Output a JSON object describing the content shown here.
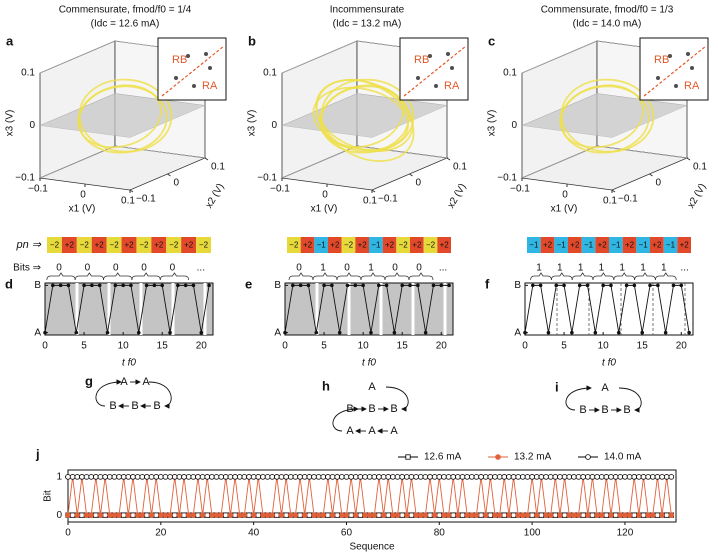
{
  "chart_data": [
    {
      "type": "trajectory3d",
      "panel_label": "a",
      "title": "Commensurate, fmod/f0 = 1/4",
      "subtitle": "(Idc = 12.6 mA)",
      "xlabel": "x1 (V)",
      "ylabel": "x2 (V)",
      "zlabel": "x3 (V)",
      "xlim": [
        -0.1,
        0.1
      ],
      "ylim": [
        -0.1,
        0.1
      ],
      "zlim": [
        -0.1,
        0.1
      ],
      "xticks": [
        {
          "value": -0.1,
          "label": "−0.1"
        },
        0,
        0.1
      ],
      "yticks": [
        {
          "value": -0.1,
          "label": "−0.1"
        },
        0,
        0.1
      ],
      "zticks": [
        {
          "value": -0.1,
          "label": "−0.1"
        },
        0,
        0.1
      ],
      "inset_labels": [
        "RB",
        "RA"
      ]
    },
    {
      "type": "trajectory3d",
      "panel_label": "b",
      "title": "Incommensurate",
      "subtitle": "(Idc = 13.2 mA)",
      "xlabel": "x1 (V)",
      "ylabel": "x2 (V)",
      "zlabel": "x3 (V)",
      "xlim": [
        -0.1,
        0.1
      ],
      "ylim": [
        -0.1,
        0.1
      ],
      "zlim": [
        -0.1,
        0.1
      ],
      "xticks": [
        {
          "value": -0.1,
          "label": "−0.1"
        },
        0,
        0.1
      ],
      "yticks": [
        {
          "value": -0.1,
          "label": "−0.1"
        },
        0,
        0.1
      ],
      "zticks": [
        {
          "value": -0.1,
          "label": "−0.1"
        },
        0,
        0.1
      ],
      "inset_labels": [
        "RB",
        "RA"
      ]
    },
    {
      "type": "trajectory3d",
      "panel_label": "c",
      "title": "Commensurate, fmod/f0 = 1/3",
      "subtitle": "(Idc = 14.0 mA)",
      "xlabel": "x1 (V)",
      "ylabel": "x2 (V)",
      "zlabel": "x3 (V)",
      "xlim": [
        -0.1,
        0.1
      ],
      "ylim": [
        -0.1,
        0.1
      ],
      "zlim": [
        -0.1,
        0.1
      ],
      "xticks": [
        {
          "value": -0.1,
          "label": "−0.1"
        },
        0,
        0.1
      ],
      "yticks": [
        {
          "value": -0.1,
          "label": "−0.1"
        },
        0,
        0.1
      ],
      "zticks": [
        {
          "value": -0.1,
          "label": "−0.1"
        },
        0,
        0.1
      ],
      "inset_labels": [
        "RB",
        "RA"
      ]
    },
    {
      "type": "line",
      "panel_label": "d",
      "pn_label": "pn ⇒",
      "bits_label": "Bits ⇒",
      "pn": [
        "−2",
        "+2",
        "−2",
        "+2",
        "−2",
        "+2",
        "−2",
        "+2",
        "−2",
        "+2",
        "−2"
      ],
      "pn_colors": [
        "#e6da3a",
        "#e2492b",
        "#e6da3a",
        "#e2492b",
        "#e6da3a",
        "#e2492b",
        "#e6da3a",
        "#e2492b",
        "#e6da3a",
        "#e2492b",
        "#e6da3a"
      ],
      "bits": [
        "0",
        "0",
        "0",
        "0",
        "0",
        "..."
      ],
      "x": [
        0,
        1,
        2,
        3,
        4,
        5,
        6,
        7,
        8,
        9,
        10,
        11,
        12,
        13,
        14,
        15,
        16,
        17,
        18,
        19,
        20,
        21
      ],
      "values": [
        0,
        1,
        1,
        1,
        0,
        1,
        1,
        1,
        0,
        1,
        1,
        1,
        0,
        1,
        1,
        1,
        0,
        1,
        1,
        1,
        0,
        1
      ],
      "xlim": [
        0,
        21.5
      ],
      "ylim": [
        -0.05,
        1.05
      ],
      "xticks": [
        0,
        5,
        10,
        15,
        20
      ],
      "yticks": [
        {
          "value": 0,
          "label": "A"
        },
        {
          "value": 1,
          "label": "B"
        }
      ],
      "xlabel": "t f0"
    },
    {
      "type": "line",
      "panel_label": "e",
      "pn": [
        "−2",
        "+2",
        "−1",
        "+2",
        "−2",
        "+2",
        "−1",
        "+2",
        "−2",
        "+2",
        "−2",
        "+2"
      ],
      "pn_colors": [
        "#e6da3a",
        "#e2492b",
        "#2fb6e3",
        "#e2492b",
        "#e6da3a",
        "#e2492b",
        "#2fb6e3",
        "#e2492b",
        "#e6da3a",
        "#e2492b",
        "#e6da3a",
        "#e2492b"
      ],
      "bits": [
        "0",
        "1",
        "0",
        "1",
        "0",
        "0",
        "..."
      ],
      "x": [
        0,
        1,
        2,
        3,
        4,
        5,
        6,
        7,
        8,
        9,
        10,
        11,
        12,
        13,
        14,
        15,
        16,
        17,
        18,
        19,
        20,
        21
      ],
      "values": [
        0,
        1,
        1,
        1,
        0,
        1,
        1,
        0,
        1,
        1,
        1,
        0,
        1,
        1,
        0,
        1,
        1,
        1,
        0,
        1,
        1,
        1
      ],
      "xlim": [
        0,
        21.5
      ],
      "ylim": [
        -0.05,
        1.05
      ],
      "xticks": [
        0,
        5,
        10,
        15,
        20
      ],
      "yticks": [
        {
          "value": 0,
          "label": "A"
        },
        {
          "value": 1,
          "label": "B"
        }
      ],
      "xlabel": "t f0"
    },
    {
      "type": "line",
      "panel_label": "f",
      "pn": [
        "−1",
        "+2",
        "−1",
        "+2",
        "−1",
        "+2",
        "−1",
        "+2",
        "−1",
        "+2",
        "−1",
        "+2"
      ],
      "pn_colors": [
        "#2fb6e3",
        "#e2492b",
        "#2fb6e3",
        "#e2492b",
        "#2fb6e3",
        "#e2492b",
        "#2fb6e3",
        "#e2492b",
        "#2fb6e3",
        "#e2492b",
        "#2fb6e3",
        "#e2492b"
      ],
      "bits": [
        "1",
        "1",
        "1",
        "1",
        "1",
        "1",
        "1",
        "..."
      ],
      "x": [
        0,
        1,
        2,
        3,
        4,
        5,
        6,
        7,
        8,
        9,
        10,
        11,
        12,
        13,
        14,
        15,
        16,
        17,
        18,
        19,
        20,
        21
      ],
      "values": [
        0,
        1,
        1,
        0,
        1,
        1,
        0,
        1,
        1,
        0,
        1,
        1,
        0,
        1,
        1,
        0,
        1,
        1,
        0,
        1,
        1,
        0
      ],
      "xlim": [
        0,
        21.5
      ],
      "ylim": [
        -0.05,
        1.05
      ],
      "xticks": [
        0,
        5,
        10,
        15,
        20
      ],
      "yticks": [
        {
          "value": 0,
          "label": "A"
        },
        {
          "value": 1,
          "label": "B"
        }
      ],
      "xlabel": "t f0"
    },
    {
      "type": "line",
      "panel_label": "j",
      "xlabel": "Sequence",
      "ylabel": "Bit",
      "legend": "top-right",
      "xlim": [
        0,
        131
      ],
      "ylim": [
        -0.18,
        1.18
      ],
      "xticks": [
        0,
        20,
        40,
        60,
        80,
        100,
        120
      ],
      "yticks": [
        0,
        1
      ],
      "x": [
        0,
        1,
        2,
        3,
        4,
        5,
        6,
        7,
        8,
        9,
        10,
        11,
        12,
        13,
        14,
        15,
        16,
        17,
        18,
        19,
        20,
        21,
        22,
        23,
        24,
        25,
        26,
        27,
        28,
        29,
        30,
        31,
        32,
        33,
        34,
        35,
        36,
        37,
        38,
        39,
        40,
        41,
        42,
        43,
        44,
        45,
        46,
        47,
        48,
        49,
        50,
        51,
        52,
        53,
        54,
        55,
        56,
        57,
        58,
        59,
        60,
        61,
        62,
        63,
        64,
        65,
        66,
        67,
        68,
        69,
        70,
        71,
        72,
        73,
        74,
        75,
        76,
        77,
        78,
        79,
        80,
        81,
        82,
        83,
        84,
        85,
        86,
        87,
        88,
        89,
        90,
        91,
        92,
        93,
        94,
        95,
        96,
        97,
        98,
        99,
        100,
        101,
        102,
        103,
        104,
        105,
        106,
        107,
        108,
        109,
        110,
        111,
        112,
        113,
        114,
        115,
        116,
        117,
        118,
        119,
        120,
        121,
        122,
        123,
        124,
        125,
        126,
        127,
        128,
        129,
        130
      ],
      "series": [
        {
          "name": "12.6 mA",
          "color": "#000000",
          "marker": "square",
          "values": [
            0,
            0,
            0,
            0,
            0,
            0,
            0,
            0,
            0,
            0,
            0,
            0,
            0,
            0,
            0,
            0,
            0,
            0,
            0,
            0,
            0,
            0,
            0,
            0,
            0,
            0,
            0,
            0,
            0,
            0,
            0,
            0,
            0,
            0,
            0,
            0,
            0,
            0,
            0,
            0,
            0,
            0,
            0,
            0,
            0,
            0,
            0,
            0,
            0,
            0,
            0,
            0,
            0,
            0,
            0,
            0,
            0,
            0,
            0,
            0,
            0,
            0,
            0,
            0,
            0,
            0,
            0,
            0,
            0,
            0,
            0,
            0,
            0,
            0,
            0,
            0,
            0,
            0,
            0,
            0,
            0,
            0,
            0,
            0,
            0,
            0,
            0,
            0,
            0,
            0,
            0,
            0,
            0,
            0,
            0,
            0,
            0,
            0,
            0,
            0,
            0,
            0,
            0,
            0,
            0,
            0,
            0,
            0,
            0,
            0,
            0,
            0,
            0,
            0,
            0,
            0,
            0,
            0,
            0,
            0,
            0,
            0,
            0,
            0,
            0,
            0,
            0,
            0,
            0,
            0,
            0
          ]
        },
        {
          "name": "13.2 mA",
          "color": "#e0603a",
          "marker": "circle",
          "values": [
            0,
            1,
            0,
            1,
            0,
            0,
            1,
            0,
            1,
            0,
            0,
            0,
            1,
            0,
            1,
            0,
            0,
            1,
            0,
            1,
            0,
            0,
            0,
            1,
            0,
            1,
            0,
            0,
            1,
            0,
            1,
            0,
            0,
            0,
            1,
            0,
            1,
            0,
            0,
            1,
            0,
            1,
            0,
            0,
            0,
            1,
            0,
            1,
            0,
            0,
            1,
            0,
            1,
            0,
            0,
            0,
            1,
            0,
            1,
            0,
            0,
            1,
            0,
            1,
            0,
            0,
            0,
            1,
            0,
            1,
            0,
            0,
            1,
            0,
            1,
            0,
            0,
            0,
            1,
            0,
            1,
            0,
            0,
            1,
            0,
            1,
            0,
            0,
            0,
            1,
            0,
            1,
            0,
            0,
            1,
            0,
            1,
            0,
            0,
            0,
            1,
            0,
            1,
            0,
            0,
            1,
            0,
            1,
            0,
            0,
            0,
            1,
            0,
            1,
            0,
            0,
            1,
            0,
            1,
            0,
            0,
            0,
            1,
            0,
            1,
            0,
            0,
            1,
            0,
            1,
            0
          ]
        },
        {
          "name": "14.0 mA",
          "color": "#000000",
          "marker": "open-circle",
          "values": [
            1,
            1,
            1,
            1,
            1,
            1,
            1,
            1,
            1,
            1,
            1,
            1,
            1,
            1,
            1,
            1,
            1,
            1,
            1,
            1,
            1,
            1,
            1,
            1,
            1,
            1,
            1,
            1,
            1,
            1,
            1,
            1,
            1,
            1,
            1,
            1,
            1,
            1,
            1,
            1,
            1,
            1,
            1,
            1,
            1,
            1,
            1,
            1,
            1,
            1,
            1,
            1,
            1,
            1,
            1,
            1,
            1,
            1,
            1,
            1,
            1,
            1,
            1,
            1,
            1,
            1,
            1,
            1,
            1,
            1,
            1,
            1,
            1,
            1,
            1,
            1,
            1,
            1,
            1,
            1,
            1,
            1,
            1,
            1,
            1,
            1,
            1,
            1,
            1,
            1,
            1,
            1,
            1,
            1,
            1,
            1,
            1,
            1,
            1,
            1,
            1,
            1,
            1,
            1,
            1,
            1,
            1,
            1,
            1,
            1,
            1,
            1,
            1,
            1,
            1,
            1,
            1,
            1,
            1,
            1,
            1,
            1,
            1,
            1,
            1,
            1,
            1,
            1,
            1,
            1,
            1
          ]
        }
      ]
    }
  ],
  "diagrams": [
    {
      "label": "g",
      "rows": [
        [
          "A",
          "A"
        ],
        [
          "B",
          "B",
          "B"
        ]
      ]
    },
    {
      "label": "h",
      "rows": [
        [
          "A"
        ],
        [
          "B",
          "B",
          "B"
        ],
        [
          "A",
          "A",
          "A"
        ]
      ]
    },
    {
      "label": "i",
      "rows": [
        [
          "A"
        ],
        [
          "B",
          "B",
          "B"
        ]
      ]
    }
  ]
}
